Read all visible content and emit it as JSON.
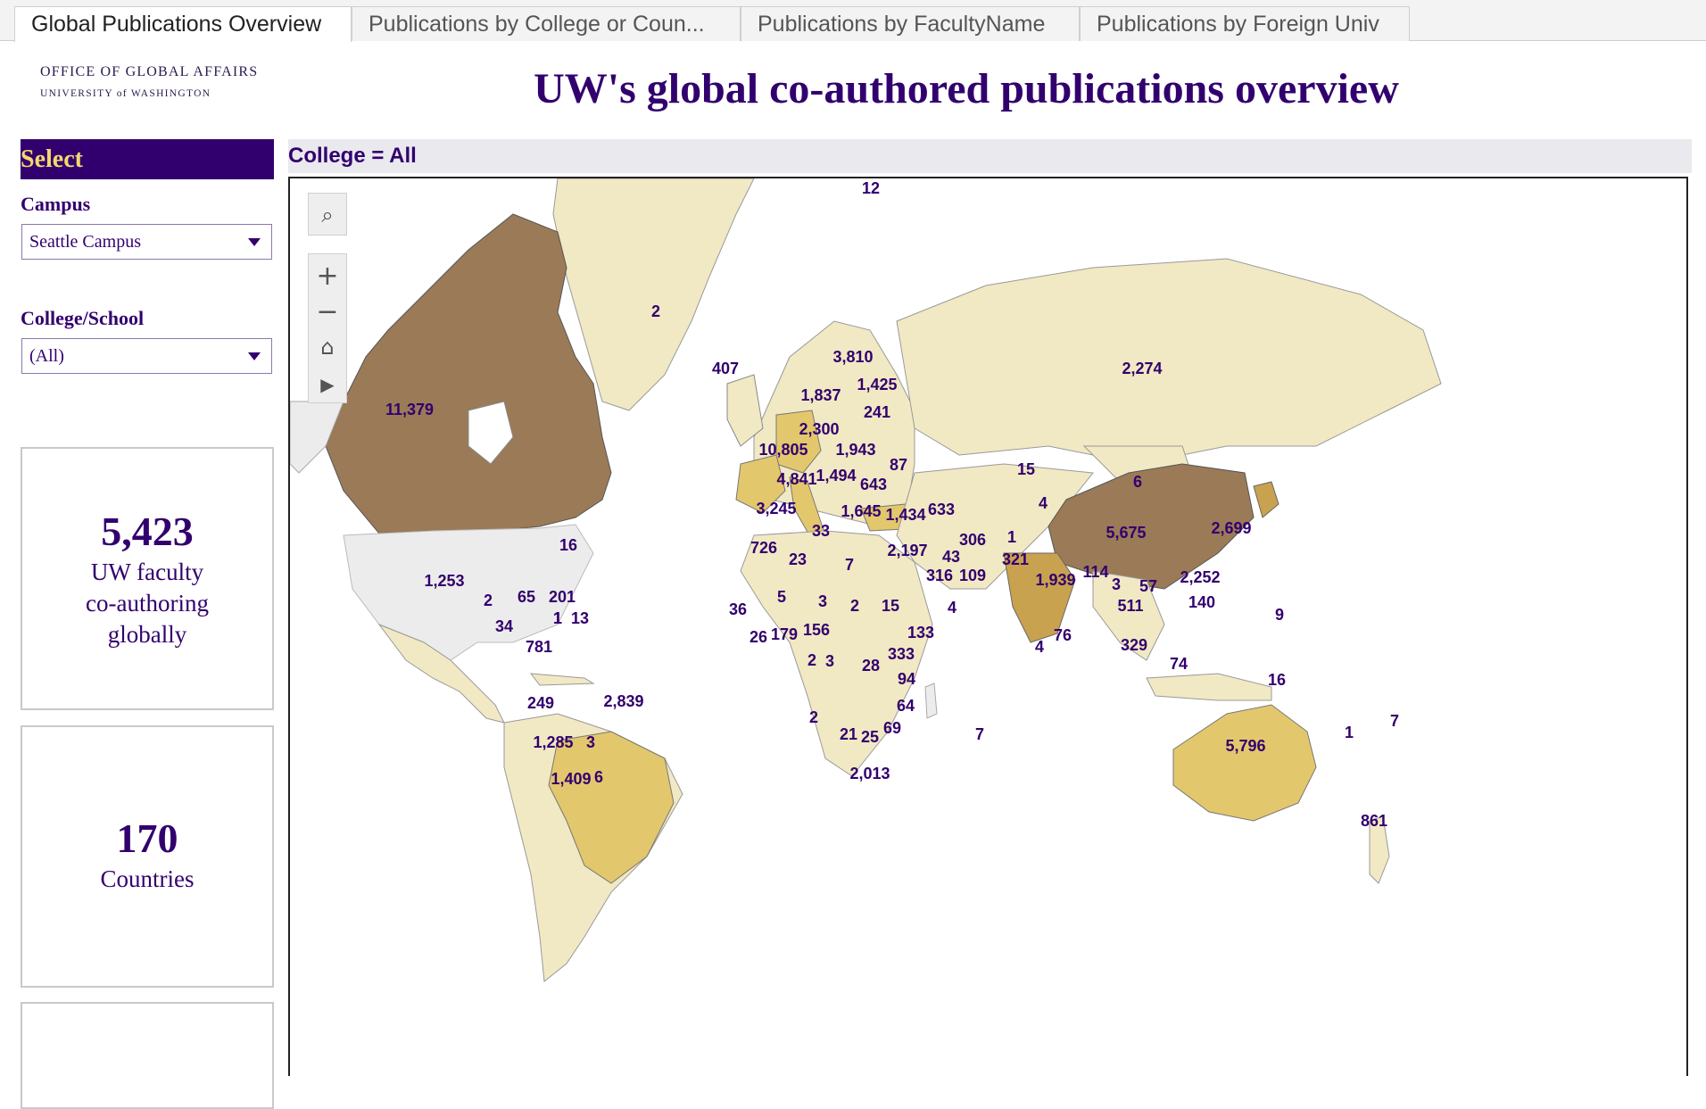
{
  "tabs": [
    {
      "label": "Global Publications Overview",
      "active": true
    },
    {
      "label": "Publications by College or Coun..."
    },
    {
      "label": "Publications by FacultyName"
    },
    {
      "label": "Publications by Foreign Univ"
    }
  ],
  "logo": {
    "line1": "OFFICE OF GLOBAL AFFAIRS",
    "line2": "UNIVERSITY of WASHINGTON"
  },
  "title": "UW's global co-authored publications overview",
  "sidebar": {
    "select_label": "Select",
    "campus_label": "Campus",
    "campus_value": "Seattle Campus",
    "college_label": "College/School",
    "college_value": "(All)",
    "card1": {
      "value": "5,423",
      "line1": "UW faculty",
      "line2": "co-authoring",
      "line3": "globally"
    },
    "card2": {
      "value": "170",
      "line1": "Countries"
    }
  },
  "map": {
    "filter_label": "College = All",
    "colors": {
      "highest": "#9b7a57",
      "high": "#c9a24f",
      "mid": "#e3c76d",
      "low": "#f1e9c4",
      "nodata": "#ececec",
      "ocean": "#ffffff",
      "label": "#32006e"
    },
    "tools": [
      "search-icon",
      "zoom-in-icon",
      "zoom-out-icon",
      "home-icon",
      "play-icon"
    ],
    "labels": [
      {
        "text": "12"
      },
      {
        "text": "2"
      },
      {
        "text": "407"
      },
      {
        "text": "3,810"
      },
      {
        "text": "1,425"
      },
      {
        "text": "1,837"
      },
      {
        "text": "241"
      },
      {
        "text": "2,300"
      },
      {
        "text": "2,274"
      },
      {
        "text": "11,379"
      },
      {
        "text": "10,805"
      },
      {
        "text": "1,943"
      },
      {
        "text": "4,841"
      },
      {
        "text": "1,494"
      },
      {
        "text": "87"
      },
      {
        "text": "643"
      },
      {
        "text": "15"
      },
      {
        "text": "6"
      },
      {
        "text": "4"
      },
      {
        "text": "3,245"
      },
      {
        "text": "1,645"
      },
      {
        "text": "1,434"
      },
      {
        "text": "633"
      },
      {
        "text": "33"
      },
      {
        "text": "5,675"
      },
      {
        "text": "2,699"
      },
      {
        "text": "16"
      },
      {
        "text": "726"
      },
      {
        "text": "23"
      },
      {
        "text": "7"
      },
      {
        "text": "2,197"
      },
      {
        "text": "43"
      },
      {
        "text": "306"
      },
      {
        "text": "1"
      },
      {
        "text": "321"
      },
      {
        "text": "316"
      },
      {
        "text": "109"
      },
      {
        "text": "1,939"
      },
      {
        "text": "114"
      },
      {
        "text": "3"
      },
      {
        "text": "57"
      },
      {
        "text": "2,252"
      },
      {
        "text": "1,253"
      },
      {
        "text": "2"
      },
      {
        "text": "65"
      },
      {
        "text": "201"
      },
      {
        "text": "1"
      },
      {
        "text": "5"
      },
      {
        "text": "3"
      },
      {
        "text": "2"
      },
      {
        "text": "15"
      },
      {
        "text": "4"
      },
      {
        "text": "511"
      },
      {
        "text": "140"
      },
      {
        "text": "9"
      },
      {
        "text": "34"
      },
      {
        "text": "1"
      },
      {
        "text": "13"
      },
      {
        "text": "36"
      },
      {
        "text": "26"
      },
      {
        "text": "179"
      },
      {
        "text": "156"
      },
      {
        "text": "133"
      },
      {
        "text": "4"
      },
      {
        "text": "76"
      },
      {
        "text": "781"
      },
      {
        "text": "2"
      },
      {
        "text": "3"
      },
      {
        "text": "28"
      },
      {
        "text": "333"
      },
      {
        "text": "94"
      },
      {
        "text": "329"
      },
      {
        "text": "74"
      },
      {
        "text": "16"
      },
      {
        "text": "249"
      },
      {
        "text": "2,839"
      },
      {
        "text": "64"
      },
      {
        "text": "2"
      },
      {
        "text": "69"
      },
      {
        "text": "21"
      },
      {
        "text": "25"
      },
      {
        "text": "7"
      },
      {
        "text": "1,285"
      },
      {
        "text": "3"
      },
      {
        "text": "5,796"
      },
      {
        "text": "1"
      },
      {
        "text": "7"
      },
      {
        "text": "2,013"
      },
      {
        "text": "1,409"
      },
      {
        "text": "6"
      },
      {
        "text": "861"
      }
    ]
  }
}
